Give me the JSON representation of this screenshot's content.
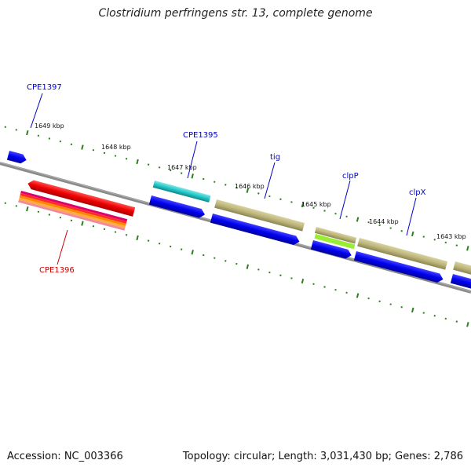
{
  "title": "Clostridium perfringens str. 13, complete genome",
  "footer": {
    "accession": "Accession: NC_003366",
    "summary": "Topology: circular; Length: 3,031,430 bp; Genes: 2,786"
  },
  "ruler_labels": [
    "1649 kbp",
    "1648 kbp",
    "1647 kbp",
    "1646 kbp",
    "1645 kbp",
    "1644 kbp",
    "1643 kbp"
  ],
  "genes": [
    {
      "label": "CPE1397",
      "color": "#0000cc"
    },
    {
      "label": "CPE1395",
      "color": "#0000cc"
    },
    {
      "label": "tig",
      "color": "#0000cc"
    },
    {
      "label": "clpP",
      "color": "#0000cc"
    },
    {
      "label": "clpX",
      "color": "#0000cc"
    },
    {
      "label": "CPE1396",
      "color": "#cc0000"
    }
  ],
  "colors": {
    "backbone": "#808080",
    "tick": "#2e7d1f",
    "cds_blue": "#0000ee",
    "cyan": "#22c8c8",
    "olive": "#bdb57a",
    "red": "#ee0000",
    "lime": "#99ee33"
  }
}
